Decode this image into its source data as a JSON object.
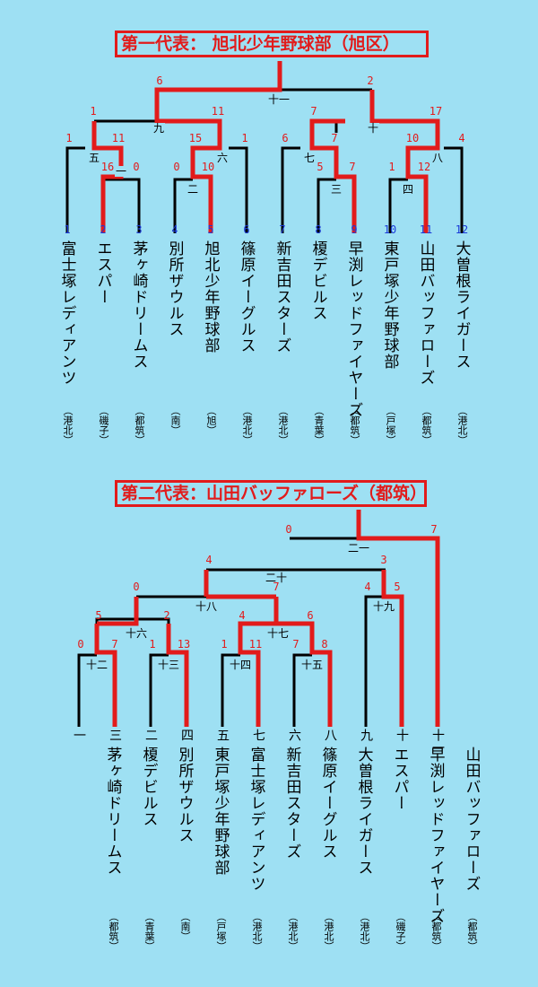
{
  "titles": {
    "first": "第一代表： 旭北少年野球部（旭区）",
    "second": "第二代表：山田バッファローズ（都筑）"
  },
  "bracket1": {
    "teams": [
      {
        "no": "1",
        "name": "富士塚レディアンツ",
        "district": "（港北）"
      },
      {
        "no": "2",
        "name": "エスパー",
        "district": "（磯子）"
      },
      {
        "no": "3",
        "name": "茅ヶ崎ドリームス",
        "district": "（都筑）"
      },
      {
        "no": "4",
        "name": "別所ザウルス",
        "district": "（南）"
      },
      {
        "no": "5",
        "name": "旭北少年野球部",
        "district": "（旭）"
      },
      {
        "no": "6",
        "name": "篠原イーグルス",
        "district": "（港北）"
      },
      {
        "no": "7",
        "name": "新吉田スターズ",
        "district": "（港北）"
      },
      {
        "no": "8",
        "name": "榎デビルス",
        "district": "（青葉）"
      },
      {
        "no": "9",
        "name": "早渕レッドファイヤーズ",
        "district": "（都筑）"
      },
      {
        "no": "10",
        "name": "東戸塚少年野球部",
        "district": "（戸塚）"
      },
      {
        "no": "11",
        "name": "山田バッファローズ",
        "district": "（都筑）"
      },
      {
        "no": "12",
        "name": "大曽根ライガース",
        "district": "（港北）"
      }
    ],
    "games": [
      "一",
      "二",
      "三",
      "四",
      "五",
      "六",
      "七",
      "八",
      "九",
      "十",
      "十一"
    ],
    "scores": [
      "16",
      "0",
      "0",
      "10",
      "5",
      "7",
      "1",
      "12",
      "1",
      "11",
      "15",
      "1",
      "6",
      "7",
      "10",
      "4",
      "1",
      "11",
      "7",
      "17",
      "6",
      "2"
    ]
  },
  "bracket2": {
    "teams": [
      {
        "seed": "一",
        "name": "茅ヶ崎ドリームス",
        "district": "（都筑）"
      },
      {
        "seed": "三",
        "name": "榎デビルス",
        "district": "（青葉）"
      },
      {
        "seed": "二",
        "name": "別所ザウルス",
        "district": "（南）"
      },
      {
        "seed": "四",
        "name": "東戸塚少年野球部",
        "district": "（戸塚）"
      },
      {
        "seed": "五",
        "name": "富士塚レディアンツ",
        "district": "（港北）"
      },
      {
        "seed": "七",
        "name": "新吉田スターズ",
        "district": "（港北）"
      },
      {
        "seed": "六",
        "name": "篠原イーグルス",
        "district": "（港北）"
      },
      {
        "seed": "八",
        "name": "大曽根ライガース",
        "district": "（港北）"
      },
      {
        "seed": "九",
        "name": "エスパー",
        "district": "（磯子）"
      },
      {
        "seed": "十",
        "name": "早渕レッドファイヤーズ",
        "district": "（都筑）"
      },
      {
        "seed": "十一",
        "name": "山田バッファローズ",
        "district": "（都筑）"
      }
    ],
    "games": [
      "十二",
      "十三",
      "十四",
      "十五",
      "十六",
      "十七",
      "十八",
      "十九",
      "二十",
      "二一"
    ],
    "scores": [
      "0",
      "7",
      "1",
      "13",
      "1",
      "11",
      "7",
      "8",
      "5",
      "2",
      "4",
      "6",
      "0",
      "7",
      "4",
      "5",
      "4",
      "3",
      "0",
      "7"
    ]
  },
  "colors": {
    "background": "#9ee0f3",
    "win": "#e21b1b",
    "line": "#000000",
    "number": "#1a3ad8"
  }
}
